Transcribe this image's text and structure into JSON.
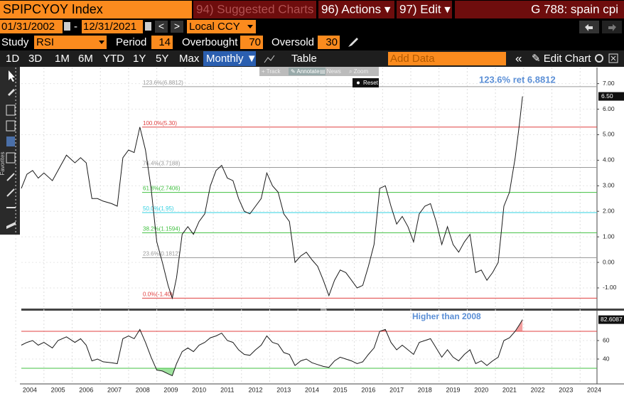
{
  "header": {
    "ticker": "SPIPCYOY Index",
    "suggested": "94) Suggested Charts",
    "actions": "96) Actions ▾",
    "edit": "97) Edit ▾",
    "page": "G 788: spain cpi"
  },
  "controls": {
    "start": "01/31/2002",
    "dash": "-",
    "end": "12/31/2021",
    "prev": "<",
    "next": ">",
    "currency": "Local CCY",
    "study_label": "Study",
    "study": "RSI",
    "period_label": "Period",
    "period": "14",
    "overbought_label": "Overbought",
    "oversold_label": "Oversold"
  },
  "toolbar": {
    "ranges": [
      "1D",
      "3D",
      "1M",
      "6M",
      "YTD",
      "1Y",
      "5Y",
      "Max"
    ],
    "frequency": "Monthly ▼",
    "table": "Table",
    "add_data": "Add Data",
    "collapse": "«",
    "edit_chart": "✎ Edit Chart"
  },
  "overlay": {
    "tools": [
      "+ Track",
      "✎ Annotate",
      "▤ News",
      "⌕ Zoom"
    ],
    "reset": "Reset"
  },
  "sidebar": {
    "favorites": "Favorites"
  },
  "chart_data": {
    "type": "line",
    "x": [
      2004.2,
      2004.4,
      2004.6,
      2004.8,
      2005.0,
      2005.3,
      2005.5,
      2005.8,
      2006.1,
      2006.3,
      2006.5,
      2006.7,
      2006.9,
      2007.1,
      2007.4,
      2007.6,
      2007.8,
      2008.0,
      2008.2,
      2008.4,
      2008.6,
      2008.8,
      2009.0,
      2009.2,
      2009.4,
      2009.55,
      2009.7,
      2009.9,
      2010.1,
      2010.3,
      2010.5,
      2010.7,
      2010.9,
      2011.1,
      2011.3,
      2011.5,
      2011.7,
      2011.9,
      2012.1,
      2012.3,
      2012.5,
      2012.7,
      2012.9,
      2013.1,
      2013.3,
      2013.5,
      2013.7,
      2013.9,
      2014.1,
      2014.3,
      2014.5,
      2014.7,
      2014.9,
      2015.1,
      2015.3,
      2015.5,
      2015.7,
      2015.9,
      2016.1,
      2016.3,
      2016.5,
      2016.7,
      2016.9,
      2017.1,
      2017.3,
      2017.5,
      2017.7,
      2017.9,
      2018.1,
      2018.3,
      2018.5,
      2018.7,
      2018.9,
      2019.1,
      2019.3,
      2019.5,
      2019.7,
      2019.9,
      2020.1,
      2020.3,
      2020.5,
      2020.7,
      2020.9,
      2021.1,
      2021.3,
      2021.5,
      2021.7,
      2021.85,
      2021.96
    ],
    "xlim": [
      2004.2,
      2024.6
    ],
    "xticks": [
      {
        "value": 2004.5,
        "label": "2004"
      },
      {
        "value": 2005.5,
        "label": "2005"
      },
      {
        "value": 2006.5,
        "label": "2006"
      },
      {
        "value": 2007.5,
        "label": "2007"
      },
      {
        "value": 2008.5,
        "label": "2008"
      },
      {
        "value": 2009.5,
        "label": "2009"
      },
      {
        "value": 2010.5,
        "label": "2010"
      },
      {
        "value": 2011.5,
        "label": "2011"
      },
      {
        "value": 2012.5,
        "label": "2012"
      },
      {
        "value": 2013.5,
        "label": "2013"
      },
      {
        "value": 2014.5,
        "label": "2014"
      },
      {
        "value": 2015.5,
        "label": "2015"
      },
      {
        "value": 2016.5,
        "label": "2016"
      },
      {
        "value": 2017.5,
        "label": "2017"
      },
      {
        "value": 2018.5,
        "label": "2018"
      },
      {
        "value": 2019.5,
        "label": "2019"
      },
      {
        "value": 2020.5,
        "label": "2020"
      },
      {
        "value": 2021.5,
        "label": "2021"
      },
      {
        "value": 2022.5,
        "label": "2022"
      },
      {
        "value": 2023.5,
        "label": "2023"
      },
      {
        "value": 2024.5,
        "label": "2024"
      }
    ],
    "ylim": [
      -1.78,
      7.63
    ],
    "yticks": [
      {
        "value": 7,
        "label": "7.00"
      },
      {
        "value": 6,
        "label": "6.00"
      },
      {
        "value": 5,
        "label": "5.00"
      },
      {
        "value": 4,
        "label": "4.00"
      },
      {
        "value": 3,
        "label": "3.00"
      },
      {
        "value": 2,
        "label": "2.00"
      },
      {
        "value": 1,
        "label": "1.00"
      },
      {
        "value": 0,
        "label": "0.00"
      },
      {
        "value": -1,
        "label": "-1.00"
      }
    ],
    "color": "#1a1a1a",
    "values": [
      2.9,
      3.45,
      3.6,
      3.3,
      3.5,
      3.2,
      3.6,
      4.2,
      3.9,
      4.1,
      3.9,
      2.5,
      2.5,
      2.4,
      2.3,
      2.2,
      4.1,
      4.4,
      4.3,
      5.3,
      4.4,
      2.9,
      0.8,
      0,
      -0.9,
      -1.4,
      -0.6,
      1.1,
      1.4,
      1.1,
      1.6,
      1.9,
      3.0,
      3.6,
      3.8,
      3.3,
      3.2,
      2.5,
      2.0,
      1.9,
      2.2,
      2.5,
      3.5,
      3.0,
      2.75,
      1.9,
      1.6,
      0.0,
      0.25,
      0.4,
      0.1,
      -0.15,
      -0.7,
      -1.3,
      -0.7,
      -0.3,
      -0.4,
      -0.7,
      -1.0,
      -0.9,
      -0.15,
      0.7,
      2.9,
      3.0,
      2.2,
      1.5,
      1.8,
      1.4,
      0.8,
      1.9,
      2.2,
      2.3,
      1.6,
      0.7,
      1.4,
      0.7,
      0.4,
      0.8,
      1.1,
      -0.4,
      -0.3,
      -0.7,
      -0.4,
      0.0,
      2.2,
      2.75,
      4.1,
      5.4,
      6.5
    ],
    "last_label": "6.50",
    "fib": [
      {
        "value": 6.8812,
        "label": "123.6%(6.8812)",
        "color": "#9a9a9a"
      },
      {
        "value": 5.3,
        "label": "100.0%(5.30)",
        "color": "#e04040"
      },
      {
        "value": 3.7188,
        "label": "76.4%(3.7188)",
        "color": "#9a9a9a"
      },
      {
        "value": 2.7406,
        "label": "61.8%(2.7406)",
        "color": "#40c040"
      },
      {
        "value": 1.95,
        "label": "50.0%(1.95)",
        "color": "#30d0e0"
      },
      {
        "value": 1.1594,
        "label": "38.2%(1.1594)",
        "color": "#40c040"
      },
      {
        "value": 0.1812,
        "label": "23.6%(0.1812)",
        "color": "#9a9a9a"
      },
      {
        "value": -1.4,
        "label": "0.0%(-1.40)",
        "color": "#e04040"
      }
    ],
    "annotation": "123.6% ret 6.8812",
    "rsi": {
      "ylim": [
        13.1,
        92.3
      ],
      "yticks": [
        40,
        60
      ],
      "color": "#1a1a1a",
      "overbought": 70,
      "oversold": 30,
      "values": [
        55,
        58,
        60,
        55,
        58,
        52,
        60,
        64,
        58,
        62,
        55,
        38,
        40,
        37,
        36,
        35,
        62,
        65,
        62,
        72,
        58,
        42,
        28,
        27,
        24,
        22,
        35,
        48,
        52,
        48,
        55,
        58,
        63,
        65,
        68,
        60,
        58,
        50,
        45,
        44,
        50,
        55,
        65,
        58,
        56,
        47,
        45,
        33,
        38,
        40,
        36,
        34,
        32,
        31,
        38,
        42,
        40,
        38,
        35,
        37,
        45,
        52,
        70,
        72,
        58,
        50,
        55,
        50,
        45,
        58,
        60,
        62,
        52,
        42,
        50,
        42,
        38,
        45,
        50,
        35,
        38,
        33,
        38,
        42,
        60,
        63,
        70,
        77,
        82.6087
      ],
      "last_label": "82.6087",
      "annotation": "Higher than 2008"
    }
  }
}
